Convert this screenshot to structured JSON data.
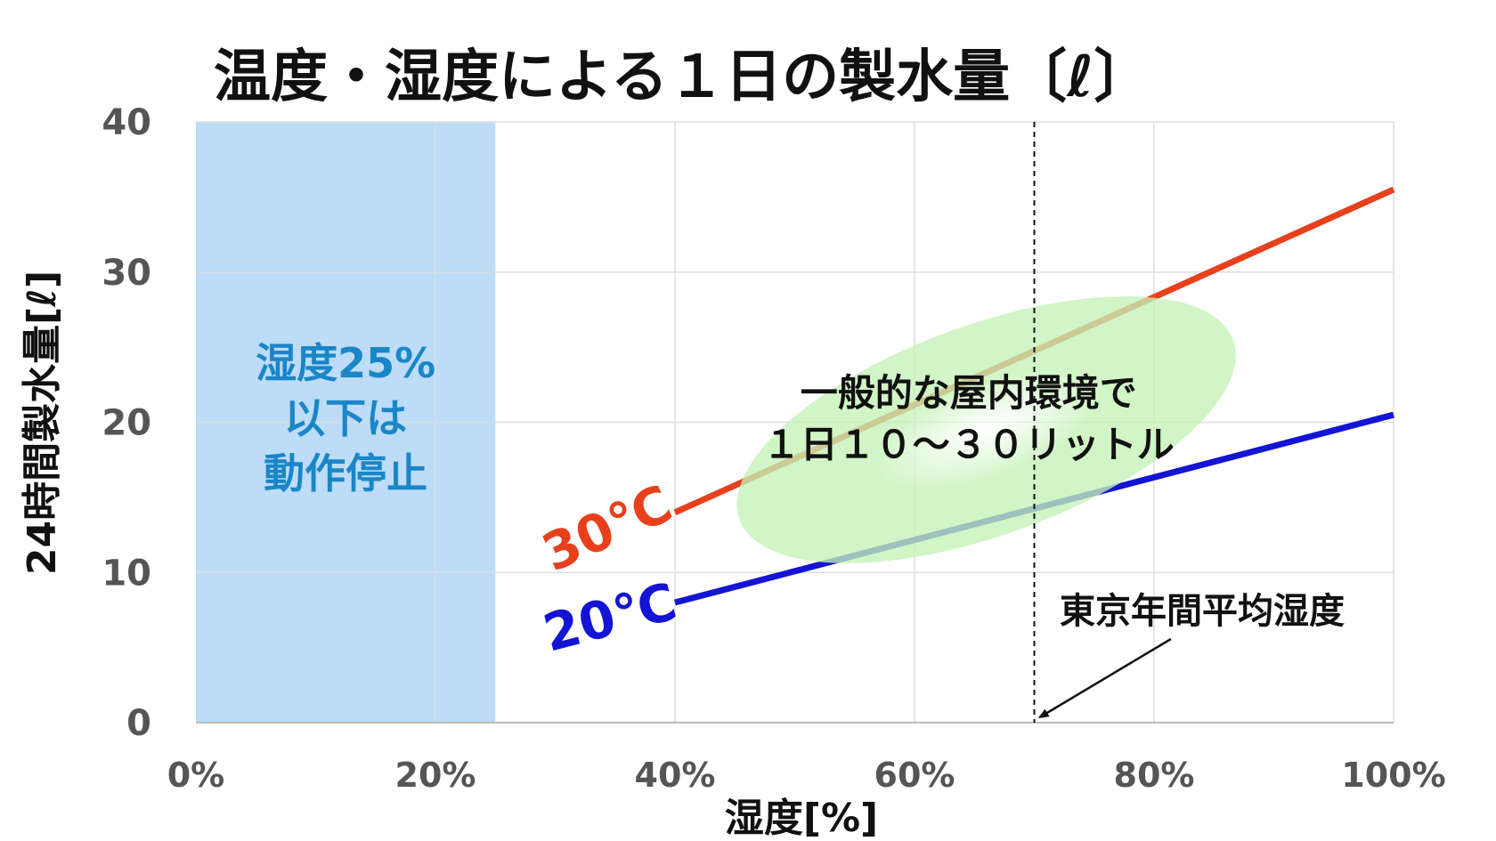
{
  "chart_data": {
    "type": "line",
    "title": "温度・湿度による１日の製水量〔ℓ〕",
    "xlabel": "湿度[%]",
    "ylabel": "24時間製水量[ℓ]",
    "xlim": [
      0,
      100
    ],
    "ylim": [
      0,
      40
    ],
    "x_ticks": [
      "0%",
      "20%",
      "40%",
      "60%",
      "80%",
      "100%"
    ],
    "y_ticks": [
      "0",
      "10",
      "20",
      "30",
      "40"
    ],
    "grid": true,
    "series": [
      {
        "name": "30℃",
        "color": "#e8401c",
        "x": [
          40,
          100
        ],
        "y": [
          14,
          35.5
        ]
      },
      {
        "name": "20℃",
        "color": "#1414d4",
        "x": [
          40,
          100
        ],
        "y": [
          8,
          20.5
        ]
      }
    ],
    "shaded_region": {
      "x_range": [
        0,
        25
      ],
      "color": "#bcdcf8",
      "text_lines": [
        "湿度25%",
        "以下は",
        "動作停止"
      ]
    },
    "typical_region": {
      "center": [
        66,
        19.5
      ],
      "color": "#c4f2b6",
      "text_lines": [
        "一般的な屋内環境で",
        "１日１０～３０リットル"
      ]
    },
    "reference_line": {
      "x": 70,
      "label": "東京年間平均湿度"
    }
  }
}
